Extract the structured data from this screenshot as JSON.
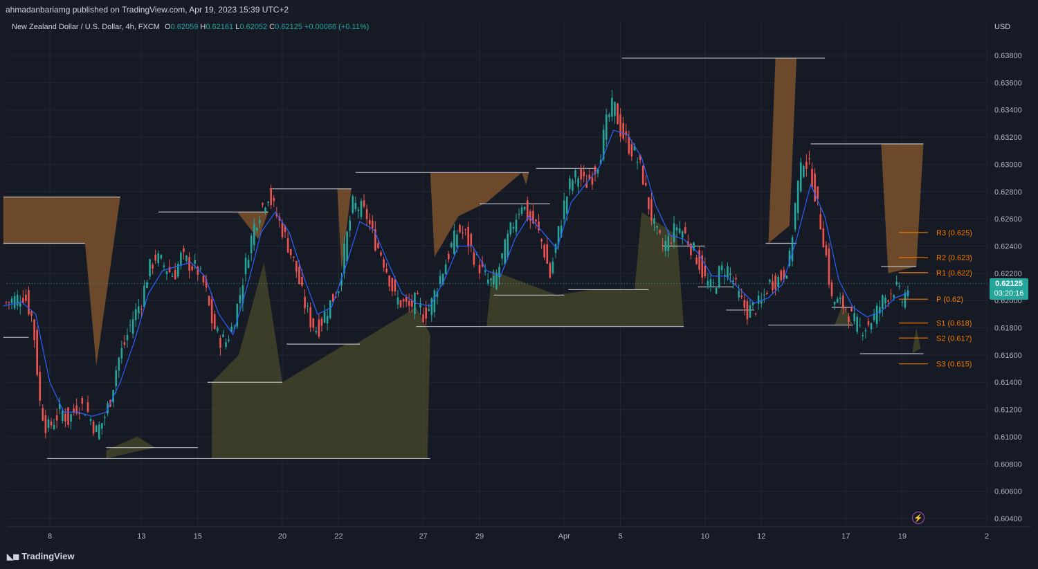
{
  "header": {
    "published_line": "ahmadanbariamg published on TradingView.com, Apr 19, 2023 15:39 UTC+2"
  },
  "legend": {
    "symbol": "New Zealand Dollar / U.S. Dollar, 4h, FXCM",
    "o_label": "O",
    "o_value": "0.62059",
    "h_label": "H",
    "h_value": "0.62161",
    "l_label": "L",
    "l_value": "0.62052",
    "c_label": "C",
    "c_value": "0.62125",
    "change": "+0.00066 (+0.11%)"
  },
  "currency": "USD",
  "last_price": {
    "price": "0.62125",
    "countdown": "03:20:16"
  },
  "footer": {
    "brand": "TradingView"
  },
  "icons": {
    "footer": "tradingview-logo-icon",
    "alert": "flash-icon"
  },
  "colors": {
    "background": "#161a25",
    "up": "#26a69a",
    "down": "#ef5350",
    "ma": "#2962ff",
    "pivot_lines": "#f57c00",
    "resistance_fill": "#8a5a2e",
    "support_fill": "#4d4d2a",
    "level_line": "#d1d4dc"
  },
  "chart_data": {
    "type": "candlestick",
    "title": "New Zealand Dollar / U.S. Dollar, 4h, FXCM",
    "ylabel": "USD",
    "ylim": [
      0.603,
      0.6395
    ],
    "y_ticks": [
      "0.63800",
      "0.63600",
      "0.63400",
      "0.63200",
      "0.63000",
      "0.62800",
      "0.62600",
      "0.62400",
      "0.62200",
      "0.62000",
      "0.61800",
      "0.61600",
      "0.61400",
      "0.61200",
      "0.61000",
      "0.60800",
      "0.60600",
      "0.60400"
    ],
    "x_ticks": [
      {
        "label": "8",
        "t": 5.0
      },
      {
        "label": "13",
        "t": 11.5
      },
      {
        "label": "15",
        "t": 15.5
      },
      {
        "label": "20",
        "t": 21.5
      },
      {
        "label": "22",
        "t": 25.5
      },
      {
        "label": "27",
        "t": 31.5
      },
      {
        "label": "29",
        "t": 35.5
      },
      {
        "label": "Apr",
        "t": 41.5
      },
      {
        "label": "5",
        "t": 45.5
      },
      {
        "label": "10",
        "t": 51.5
      },
      {
        "label": "12",
        "t": 55.5
      },
      {
        "label": "17",
        "t": 61.5
      },
      {
        "label": "19",
        "t": 65.5
      },
      {
        "label": "2",
        "t": 71.5
      }
    ],
    "t_range": [
      1.7,
      72.0
    ],
    "current_price": 0.62125,
    "close_path": [
      [
        1.7,
        0.6198
      ],
      [
        2.5,
        0.6201
      ],
      [
        3.2,
        0.6204
      ],
      [
        3.8,
        0.6185
      ],
      [
        4.3,
        0.6125
      ],
      [
        4.8,
        0.6105
      ],
      [
        5.3,
        0.6112
      ],
      [
        5.8,
        0.612
      ],
      [
        6.3,
        0.6112
      ],
      [
        7.0,
        0.6124
      ],
      [
        7.6,
        0.612
      ],
      [
        8.3,
        0.6104
      ],
      [
        8.8,
        0.6112
      ],
      [
        9.3,
        0.6128
      ],
      [
        9.8,
        0.6155
      ],
      [
        10.3,
        0.6168
      ],
      [
        10.8,
        0.6185
      ],
      [
        11.5,
        0.62
      ],
      [
        12.0,
        0.6222
      ],
      [
        12.5,
        0.6232
      ],
      [
        13.2,
        0.6225
      ],
      [
        13.8,
        0.6218
      ],
      [
        14.3,
        0.6232
      ],
      [
        14.8,
        0.6228
      ],
      [
        15.5,
        0.6222
      ],
      [
        16.0,
        0.621
      ],
      [
        16.5,
        0.6185
      ],
      [
        17.0,
        0.6172
      ],
      [
        17.5,
        0.617
      ],
      [
        18.0,
        0.6182
      ],
      [
        18.5,
        0.6205
      ],
      [
        19.0,
        0.6232
      ],
      [
        19.5,
        0.6255
      ],
      [
        20.0,
        0.6268
      ],
      [
        20.5,
        0.6278
      ],
      [
        21.0,
        0.6265
      ],
      [
        21.5,
        0.6252
      ],
      [
        22.0,
        0.6238
      ],
      [
        22.5,
        0.6222
      ],
      [
        23.0,
        0.62
      ],
      [
        23.5,
        0.6185
      ],
      [
        24.0,
        0.6178
      ],
      [
        24.5,
        0.619
      ],
      [
        25.0,
        0.62
      ],
      [
        25.5,
        0.621
      ],
      [
        26.0,
        0.6242
      ],
      [
        26.5,
        0.627
      ],
      [
        27.0,
        0.6268
      ],
      [
        27.5,
        0.6262
      ],
      [
        28.0,
        0.6245
      ],
      [
        28.5,
        0.6235
      ],
      [
        29.0,
        0.622
      ],
      [
        29.5,
        0.6202
      ],
      [
        30.0,
        0.6198
      ],
      [
        30.5,
        0.6195
      ],
      [
        31.0,
        0.62
      ],
      [
        31.5,
        0.619
      ],
      [
        32.0,
        0.6195
      ],
      [
        32.5,
        0.6212
      ],
      [
        33.0,
        0.6225
      ],
      [
        33.5,
        0.624
      ],
      [
        34.0,
        0.6252
      ],
      [
        34.5,
        0.6248
      ],
      [
        35.0,
        0.6235
      ],
      [
        35.5,
        0.6225
      ],
      [
        36.0,
        0.6215
      ],
      [
        36.5,
        0.6212
      ],
      [
        37.0,
        0.6228
      ],
      [
        37.5,
        0.6245
      ],
      [
        38.0,
        0.626
      ],
      [
        38.5,
        0.6272
      ],
      [
        39.0,
        0.626
      ],
      [
        39.5,
        0.6255
      ],
      [
        40.0,
        0.624
      ],
      [
        40.5,
        0.6218
      ],
      [
        41.0,
        0.6245
      ],
      [
        41.5,
        0.627
      ],
      [
        42.0,
        0.6288
      ],
      [
        42.5,
        0.6292
      ],
      [
        43.0,
        0.6285
      ],
      [
        43.5,
        0.6292
      ],
      [
        44.0,
        0.6305
      ],
      [
        44.5,
        0.633
      ],
      [
        45.0,
        0.6345
      ],
      [
        45.5,
        0.6325
      ],
      [
        46.0,
        0.6315
      ],
      [
        46.5,
        0.6308
      ],
      [
        47.0,
        0.6295
      ],
      [
        47.5,
        0.627
      ],
      [
        48.0,
        0.625
      ],
      [
        48.5,
        0.624
      ],
      [
        49.0,
        0.6245
      ],
      [
        49.5,
        0.6255
      ],
      [
        50.0,
        0.625
      ],
      [
        50.5,
        0.624
      ],
      [
        51.0,
        0.623
      ],
      [
        51.5,
        0.6215
      ],
      [
        52.0,
        0.6208
      ],
      [
        52.5,
        0.622
      ],
      [
        53.0,
        0.6225
      ],
      [
        53.5,
        0.6215
      ],
      [
        54.0,
        0.62
      ],
      [
        54.5,
        0.6192
      ],
      [
        55.0,
        0.6195
      ],
      [
        55.5,
        0.6198
      ],
      [
        56.0,
        0.6212
      ],
      [
        56.5,
        0.6215
      ],
      [
        57.0,
        0.6218
      ],
      [
        57.5,
        0.623
      ],
      [
        58.0,
        0.628
      ],
      [
        58.5,
        0.6305
      ],
      [
        59.0,
        0.6295
      ],
      [
        59.5,
        0.6268
      ],
      [
        60.0,
        0.624
      ],
      [
        60.5,
        0.62
      ],
      [
        61.0,
        0.6198
      ],
      [
        61.5,
        0.6195
      ],
      [
        62.0,
        0.6185
      ],
      [
        62.5,
        0.618
      ],
      [
        63.0,
        0.6182
      ],
      [
        63.5,
        0.6188
      ],
      [
        64.0,
        0.6198
      ],
      [
        64.5,
        0.6205
      ],
      [
        65.0,
        0.621
      ],
      [
        65.5,
        0.62
      ],
      [
        66.0,
        0.6212
      ]
    ],
    "sma_path": [
      [
        1.7,
        0.6196
      ],
      [
        3.0,
        0.6199
      ],
      [
        4.0,
        0.619
      ],
      [
        5.0,
        0.614
      ],
      [
        6.0,
        0.6118
      ],
      [
        7.0,
        0.6118
      ],
      [
        8.0,
        0.6115
      ],
      [
        9.0,
        0.6118
      ],
      [
        10.0,
        0.614
      ],
      [
        11.0,
        0.617
      ],
      [
        12.0,
        0.6205
      ],
      [
        13.0,
        0.6222
      ],
      [
        14.0,
        0.6225
      ],
      [
        15.0,
        0.6228
      ],
      [
        16.0,
        0.6218
      ],
      [
        17.0,
        0.619
      ],
      [
        18.0,
        0.6175
      ],
      [
        19.0,
        0.621
      ],
      [
        20.0,
        0.625
      ],
      [
        21.0,
        0.6265
      ],
      [
        22.0,
        0.625
      ],
      [
        23.0,
        0.6218
      ],
      [
        24.0,
        0.619
      ],
      [
        25.0,
        0.6195
      ],
      [
        26.0,
        0.6225
      ],
      [
        27.0,
        0.6258
      ],
      [
        28.0,
        0.6252
      ],
      [
        29.0,
        0.6228
      ],
      [
        30.0,
        0.6205
      ],
      [
        31.0,
        0.6198
      ],
      [
        32.0,
        0.6196
      ],
      [
        33.0,
        0.6215
      ],
      [
        34.0,
        0.624
      ],
      [
        35.0,
        0.624
      ],
      [
        36.0,
        0.6222
      ],
      [
        37.0,
        0.6218
      ],
      [
        38.0,
        0.6245
      ],
      [
        39.0,
        0.6262
      ],
      [
        40.0,
        0.625
      ],
      [
        41.0,
        0.6238
      ],
      [
        42.0,
        0.6272
      ],
      [
        43.0,
        0.6285
      ],
      [
        44.0,
        0.6298
      ],
      [
        45.0,
        0.6325
      ],
      [
        46.0,
        0.6322
      ],
      [
        47.0,
        0.6305
      ],
      [
        48.0,
        0.627
      ],
      [
        49.0,
        0.6248
      ],
      [
        50.0,
        0.6245
      ],
      [
        51.0,
        0.6235
      ],
      [
        52.0,
        0.6218
      ],
      [
        53.0,
        0.6218
      ],
      [
        54.0,
        0.6208
      ],
      [
        55.0,
        0.6198
      ],
      [
        56.0,
        0.6202
      ],
      [
        57.0,
        0.6212
      ],
      [
        58.0,
        0.6245
      ],
      [
        59.0,
        0.6285
      ],
      [
        60.0,
        0.6262
      ],
      [
        61.0,
        0.6215
      ],
      [
        62.0,
        0.6195
      ],
      [
        63.0,
        0.6188
      ],
      [
        64.0,
        0.6192
      ],
      [
        65.0,
        0.6202
      ],
      [
        66.0,
        0.6206
      ]
    ],
    "resistance_levels": [
      {
        "t_start": 1.7,
        "t_end": 10.0,
        "value": 0.6276
      },
      {
        "t_start": 1.7,
        "t_end": 7.5,
        "value": 0.6242
      },
      {
        "t_start": 12.7,
        "t_end": 20.5,
        "value": 0.6265
      },
      {
        "t_start": 20.6,
        "t_end": 26.4,
        "value": 0.6282
      },
      {
        "t_start": 26.7,
        "t_end": 39.0,
        "value": 0.6294
      },
      {
        "t_start": 35.5,
        "t_end": 40.5,
        "value": 0.6271
      },
      {
        "t_start": 39.5,
        "t_end": 43.8,
        "value": 0.6297
      },
      {
        "t_start": 45.6,
        "t_end": 60.0,
        "value": 0.6378
      },
      {
        "t_start": 55.8,
        "t_end": 58.0,
        "value": 0.6242
      },
      {
        "t_start": 59.0,
        "t_end": 67.0,
        "value": 0.6315
      },
      {
        "t_start": 64.0,
        "t_end": 66.5,
        "value": 0.6225
      }
    ],
    "support_levels": [
      {
        "t_start": 1.7,
        "t_end": 3.5,
        "value": 0.6173
      },
      {
        "t_start": 4.8,
        "t_end": 32.0,
        "value": 0.6084
      },
      {
        "t_start": 9.0,
        "t_end": 15.5,
        "value": 0.6092
      },
      {
        "t_start": 16.2,
        "t_end": 21.5,
        "value": 0.614
      },
      {
        "t_start": 21.8,
        "t_end": 27.0,
        "value": 0.6168
      },
      {
        "t_start": 31.0,
        "t_end": 50.0,
        "value": 0.6181
      },
      {
        "t_start": 36.5,
        "t_end": 41.5,
        "value": 0.6204
      },
      {
        "t_start": 41.8,
        "t_end": 47.5,
        "value": 0.6208
      },
      {
        "t_start": 48.5,
        "t_end": 51.5,
        "value": 0.624
      },
      {
        "t_start": 51.0,
        "t_end": 53.5,
        "value": 0.621
      },
      {
        "t_start": 53.0,
        "t_end": 55.0,
        "value": 0.6193
      },
      {
        "t_start": 56.0,
        "t_end": 62.0,
        "value": 0.6182
      },
      {
        "t_start": 60.5,
        "t_end": 62.0,
        "value": 0.6195
      },
      {
        "t_start": 62.5,
        "t_end": 67.0,
        "value": 0.6161
      }
    ],
    "resistance_fills": [
      {
        "t": [
          1.7,
          10.0,
          8.3,
          7.5,
          1.7
        ],
        "v": [
          0.6276,
          0.6276,
          0.6152,
          0.6242,
          0.6242
        ]
      },
      {
        "t": [
          18.3,
          20.5,
          19.8
        ],
        "v": [
          0.6265,
          0.6265,
          0.6245
        ]
      },
      {
        "t": [
          25.4,
          26.4,
          25.7
        ],
        "v": [
          0.6282,
          0.6282,
          0.6222
        ]
      },
      {
        "t": [
          32.0,
          38.5,
          36.0,
          34.0,
          32.3
        ],
        "v": [
          0.6294,
          0.6294,
          0.6272,
          0.6262,
          0.6232
        ]
      },
      {
        "t": [
          38.5,
          39.0,
          38.8
        ],
        "v": [
          0.6294,
          0.6294,
          0.6285
        ]
      },
      {
        "t": [
          56.5,
          58.0,
          57.5,
          56.0
        ],
        "v": [
          0.6378,
          0.6378,
          0.6255,
          0.6242
        ]
      },
      {
        "t": [
          64.0,
          67.0,
          66.5,
          64.5
        ],
        "v": [
          0.6315,
          0.6315,
          0.6225,
          0.622
        ]
      }
    ],
    "support_fills": [
      {
        "t": [
          9.0,
          11.5,
          12.5,
          11.2,
          9.0
        ],
        "v": [
          0.6084,
          0.609,
          0.6092,
          0.61,
          0.609
        ]
      },
      {
        "t": [
          16.5,
          31.8,
          32.0,
          31.0,
          26.7,
          26.0,
          21.5,
          20.2,
          18.4,
          16.5
        ],
        "v": [
          0.6084,
          0.6084,
          0.6175,
          0.6195,
          0.6168,
          0.6168,
          0.614,
          0.6228,
          0.616,
          0.614
        ]
      },
      {
        "t": [
          36.0,
          50.0,
          49.5,
          47.0,
          46.5,
          43.5,
          41.0,
          36.4
        ],
        "v": [
          0.6181,
          0.6181,
          0.6248,
          0.6265,
          0.6208,
          0.6208,
          0.6204,
          0.6222
        ]
      },
      {
        "t": [
          60.7,
          62.0,
          61.3
        ],
        "v": [
          0.6182,
          0.6182,
          0.6198
        ]
      },
      {
        "t": [
          66.2,
          66.8,
          66.5
        ],
        "v": [
          0.6161,
          0.6165,
          0.618
        ]
      }
    ],
    "pivot_levels": [
      {
        "label": "R3 (0.625)",
        "value": 0.625
      },
      {
        "label": "R2 (0.623)",
        "value": 0.62315
      },
      {
        "label": "R1 (0.622)",
        "value": 0.62205
      },
      {
        "label": "P (0.62)",
        "value": 0.6201
      },
      {
        "label": "S1 (0.618)",
        "value": 0.61835
      },
      {
        "label": "S2 (0.617)",
        "value": 0.61725
      },
      {
        "label": "S3 (0.615)",
        "value": 0.61535
      }
    ]
  }
}
